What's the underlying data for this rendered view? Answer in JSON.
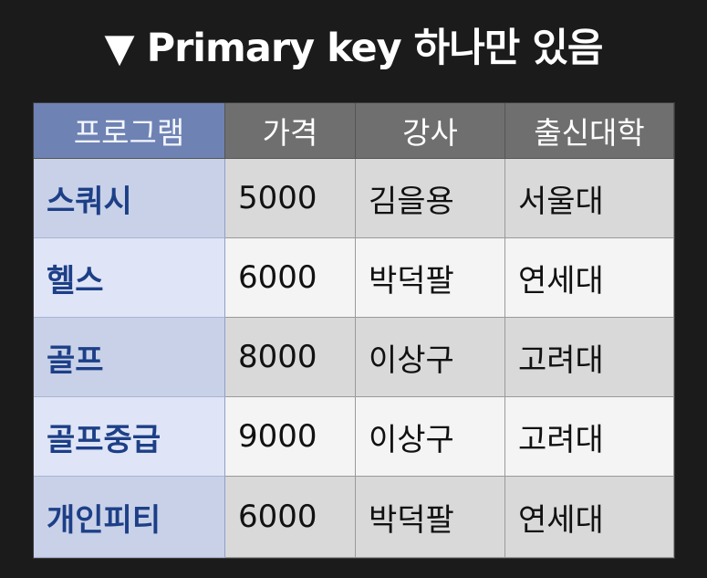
{
  "title": "▼ Primary key 하나만 있음",
  "table": {
    "headers": [
      "프로그램",
      "가격",
      "강사",
      "출신대학"
    ],
    "rows": [
      [
        "스쿼시",
        "5000",
        "김을용",
        "서울대"
      ],
      [
        "헬스",
        "6000",
        "박덕팔",
        "연세대"
      ],
      [
        "골프",
        "8000",
        "이상구",
        "고려대"
      ],
      [
        "골프중급",
        "9000",
        "이상구",
        "고려대"
      ],
      [
        "개인피티",
        "6000",
        "박덕팔",
        "연세대"
      ]
    ]
  },
  "colors": {
    "background": "#1b1b1b",
    "header_key": "#6e82b3",
    "header": "#6f6f6f",
    "key_text": "#1d3f87"
  }
}
